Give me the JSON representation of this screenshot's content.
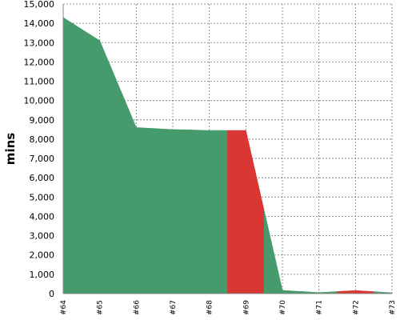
{
  "chart_data": {
    "type": "area",
    "title": "",
    "xlabel": "",
    "ylabel": "mins",
    "ylim": [
      0,
      15000
    ],
    "yticks": [
      0,
      1000,
      2000,
      3000,
      4000,
      5000,
      6000,
      7000,
      8000,
      9000,
      10000,
      11000,
      12000,
      13000,
      14000,
      15000
    ],
    "ytick_labels": [
      "0",
      "1,000",
      "2,000",
      "3,000",
      "4,000",
      "5,000",
      "6,000",
      "7,000",
      "8,000",
      "9,000",
      "10,000",
      "11,000",
      "12,000",
      "13,000",
      "14,000",
      "15,000"
    ],
    "categories": [
      "#64",
      "#65",
      "#66",
      "#67",
      "#68",
      "#69",
      "#70",
      "#71",
      "#72",
      "#73"
    ],
    "values": [
      14300,
      13100,
      8600,
      8500,
      8450,
      8450,
      170,
      50,
      160,
      40
    ],
    "status": [
      "success",
      "success",
      "success",
      "success",
      "success",
      "failure",
      "success",
      "success",
      "failure",
      "success"
    ],
    "grid": true,
    "colors": {
      "success": "#459b6c",
      "failure": "#d93634"
    }
  }
}
